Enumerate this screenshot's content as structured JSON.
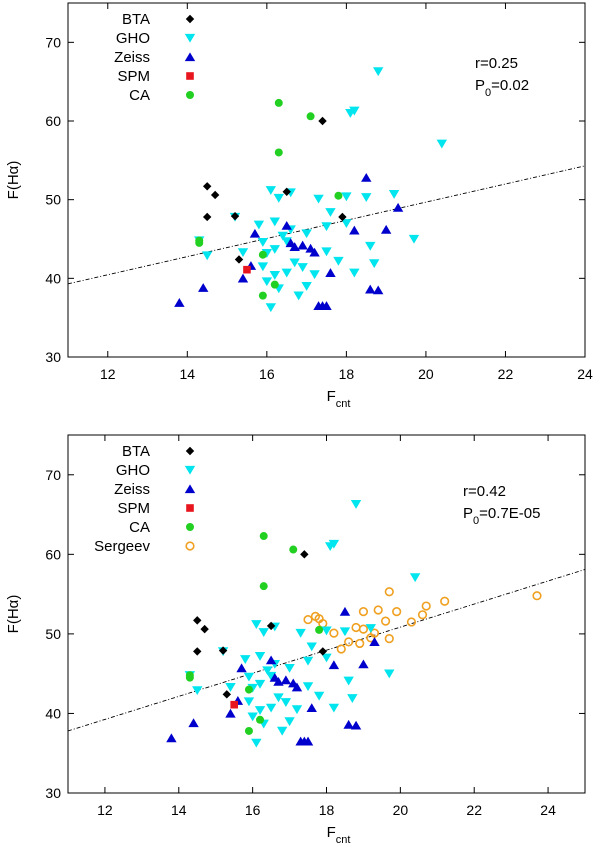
{
  "colors": {
    "BTA": "#000000",
    "GHO": "#00e5ee",
    "Zeiss": "#0000cd",
    "SPM": "#e8141e",
    "CA": "#22d022",
    "Sergeev": "#f0a020"
  },
  "chart_data": [
    {
      "type": "scatter",
      "xlabel": "F",
      "xlabel_sub": "cnt",
      "ylabel": "F(Hα)",
      "xlim": [
        11,
        24
      ],
      "ylim": [
        30,
        75
      ],
      "xticks": [
        12,
        14,
        16,
        18,
        20,
        22,
        24
      ],
      "yticks": [
        30,
        40,
        50,
        60,
        70
      ],
      "annotation": {
        "line1": "r=0.25",
        "line2_main": "P",
        "line2_sub": "0",
        "line2_rest": "=0.02"
      },
      "fit_line": {
        "x": [
          11,
          24
        ],
        "y": [
          39.3,
          54.3
        ]
      },
      "series": [
        {
          "name": "BTA",
          "marker": "diamond",
          "x": [
            14.5,
            14.5,
            14.7,
            15.2,
            15.3,
            16.5,
            17.4,
            17.9
          ],
          "y": [
            51.7,
            47.8,
            50.6,
            47.9,
            42.4,
            51.0,
            60.0,
            47.8
          ]
        },
        {
          "name": "GHO",
          "marker": "triangle-down",
          "x": [
            14.3,
            14.5,
            15.2,
            15.4,
            15.8,
            15.9,
            15.9,
            16.0,
            16.0,
            16.1,
            16.1,
            16.2,
            16.2,
            16.2,
            16.3,
            16.3,
            16.4,
            16.5,
            16.5,
            16.6,
            16.6,
            16.7,
            16.8,
            16.9,
            17.0,
            17.0,
            17.2,
            17.3,
            17.5,
            17.5,
            17.6,
            17.8,
            18.0,
            18.0,
            18.1,
            18.2,
            18.2,
            18.5,
            18.6,
            18.7,
            18.8,
            19.2,
            19.7,
            20.4
          ],
          "y": [
            44.8,
            42.9,
            47.8,
            43.3,
            46.8,
            44.6,
            41.5,
            43.2,
            39.6,
            36.3,
            51.2,
            47.2,
            43.7,
            40.4,
            50.2,
            38.7,
            45.4,
            40.7,
            44.7,
            50.9,
            46.2,
            42.0,
            37.8,
            41.4,
            45.7,
            39.0,
            40.5,
            50.1,
            43.4,
            46.6,
            48.4,
            42.2,
            50.4,
            47.0,
            61.0,
            61.3,
            40.7,
            50.3,
            44.1,
            41.9,
            66.3,
            50.7,
            45.0,
            57.1
          ]
        },
        {
          "name": "Zeiss",
          "marker": "triangle-up",
          "x": [
            13.8,
            14.4,
            15.4,
            15.6,
            15.7,
            16.5,
            16.6,
            16.7,
            16.9,
            17.1,
            17.2,
            17.3,
            17.4,
            17.5,
            17.6,
            18.2,
            18.5,
            18.6,
            18.8,
            19.0,
            19.3
          ],
          "y": [
            36.9,
            38.8,
            40.0,
            41.6,
            45.7,
            46.7,
            44.5,
            44.0,
            44.2,
            43.8,
            43.3,
            36.5,
            36.5,
            36.5,
            40.7,
            46.1,
            52.8,
            38.6,
            38.5,
            46.2,
            49.0
          ]
        },
        {
          "name": "SPM",
          "marker": "square",
          "x": [
            15.5
          ],
          "y": [
            41.1
          ]
        },
        {
          "name": "CA",
          "marker": "circle",
          "x": [
            14.3,
            14.3,
            15.9,
            15.9,
            16.2,
            16.3,
            16.3,
            17.1,
            17.8
          ],
          "y": [
            44.5,
            44.8,
            43.0,
            37.8,
            39.2,
            62.3,
            56.0,
            60.6,
            50.5
          ]
        }
      ]
    },
    {
      "type": "scatter",
      "xlabel": "F",
      "xlabel_sub": "cnt",
      "ylabel": "F(Hα)",
      "xlim": [
        11,
        25
      ],
      "ylim": [
        30,
        75
      ],
      "xticks": [
        12,
        14,
        16,
        18,
        20,
        22,
        24
      ],
      "yticks": [
        30,
        40,
        50,
        60,
        70
      ],
      "annotation": {
        "line1": "r=0.42",
        "line2_main": "P",
        "line2_sub": "0",
        "line2_rest": "=0.7E-05"
      },
      "fit_line": {
        "x": [
          11,
          25
        ],
        "y": [
          37.8,
          58.1
        ]
      },
      "series": [
        {
          "name": "BTA",
          "marker": "diamond",
          "x": [
            14.5,
            14.5,
            14.7,
            15.2,
            15.3,
            16.5,
            17.4,
            17.9
          ],
          "y": [
            51.7,
            47.8,
            50.6,
            47.9,
            42.4,
            51.0,
            60.0,
            47.8
          ]
        },
        {
          "name": "GHO",
          "marker": "triangle-down",
          "x": [
            14.3,
            14.5,
            15.2,
            15.4,
            15.8,
            15.9,
            15.9,
            16.0,
            16.0,
            16.1,
            16.1,
            16.2,
            16.2,
            16.2,
            16.3,
            16.3,
            16.4,
            16.5,
            16.5,
            16.6,
            16.6,
            16.7,
            16.8,
            16.9,
            17.0,
            17.0,
            17.2,
            17.3,
            17.5,
            17.5,
            17.6,
            17.8,
            18.0,
            18.0,
            18.1,
            18.2,
            18.2,
            18.5,
            18.6,
            18.7,
            18.8,
            19.2,
            19.7,
            20.4
          ],
          "y": [
            44.8,
            42.9,
            47.8,
            43.3,
            46.8,
            44.6,
            41.5,
            43.2,
            39.6,
            36.3,
            51.2,
            47.2,
            43.7,
            40.4,
            50.2,
            38.7,
            45.4,
            40.7,
            44.7,
            50.9,
            46.2,
            42.0,
            37.8,
            41.4,
            45.7,
            39.0,
            40.5,
            50.1,
            43.4,
            46.6,
            48.4,
            42.2,
            50.4,
            47.0,
            61.0,
            61.3,
            40.7,
            50.3,
            44.1,
            41.9,
            66.3,
            50.7,
            45.0,
            57.1
          ]
        },
        {
          "name": "Zeiss",
          "marker": "triangle-up",
          "x": [
            13.8,
            14.4,
            15.4,
            15.6,
            15.7,
            16.5,
            16.6,
            16.7,
            16.9,
            17.1,
            17.2,
            17.3,
            17.4,
            17.5,
            17.6,
            18.2,
            18.5,
            18.6,
            18.8,
            19.0,
            19.3
          ],
          "y": [
            36.9,
            38.8,
            40.0,
            41.6,
            45.7,
            46.7,
            44.5,
            44.0,
            44.2,
            43.8,
            43.3,
            36.5,
            36.5,
            36.5,
            40.7,
            46.1,
            52.8,
            38.6,
            38.5,
            46.2,
            49.0
          ]
        },
        {
          "name": "SPM",
          "marker": "square",
          "x": [
            15.5
          ],
          "y": [
            41.1
          ]
        },
        {
          "name": "CA",
          "marker": "circle",
          "x": [
            14.3,
            14.3,
            15.9,
            15.9,
            16.2,
            16.3,
            16.3,
            17.1,
            17.8
          ],
          "y": [
            44.5,
            44.8,
            43.0,
            37.8,
            39.2,
            62.3,
            56.0,
            60.6,
            50.5
          ]
        },
        {
          "name": "Sergeev",
          "marker": "open-circle",
          "x": [
            17.5,
            17.7,
            17.8,
            17.9,
            18.2,
            18.4,
            18.6,
            18.8,
            18.9,
            19.0,
            19.0,
            19.2,
            19.3,
            19.4,
            19.6,
            19.7,
            19.7,
            19.9,
            20.3,
            20.6,
            20.7,
            21.2,
            23.7
          ],
          "y": [
            51.8,
            52.2,
            51.9,
            51.3,
            50.1,
            48.1,
            49.0,
            50.8,
            48.8,
            52.8,
            50.6,
            49.5,
            50.1,
            53.0,
            51.6,
            55.3,
            49.4,
            52.8,
            51.5,
            52.4,
            53.5,
            54.1,
            54.8
          ]
        }
      ]
    }
  ]
}
